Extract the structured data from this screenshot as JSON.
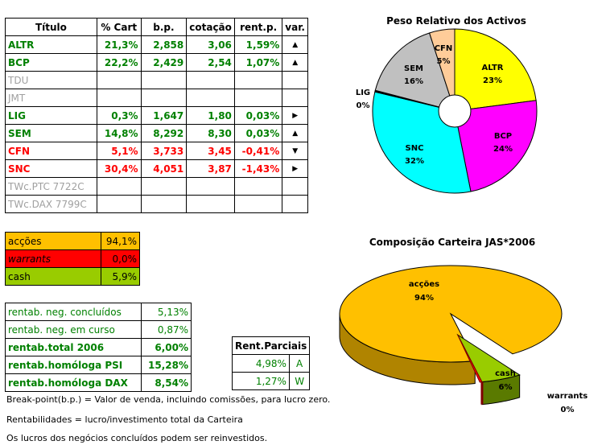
{
  "main_table": {
    "headers": [
      "Título",
      "% Cart",
      "b.p.",
      "cotação",
      "rent.p.",
      "var."
    ],
    "rows": [
      {
        "name": "ALTR",
        "pct": "21,3%",
        "bp": "2,858",
        "cot": "3,06",
        "rent": "1,59%",
        "var": "up",
        "color": "green"
      },
      {
        "name": "BCP",
        "pct": "22,2%",
        "bp": "2,429",
        "cot": "2,54",
        "rent": "1,07%",
        "var": "up",
        "color": "green"
      },
      {
        "name": "TDU",
        "pct": "",
        "bp": "",
        "cot": "",
        "rent": "",
        "var": "",
        "color": "gray"
      },
      {
        "name": "JMT",
        "pct": "",
        "bp": "",
        "cot": "",
        "rent": "",
        "var": "",
        "color": "gray"
      },
      {
        "name": "LIG",
        "pct": "0,3%",
        "bp": "1,647",
        "cot": "1,80",
        "rent": "0,03%",
        "var": "right",
        "color": "green"
      },
      {
        "name": "SEM",
        "pct": "14,8%",
        "bp": "8,292",
        "cot": "8,30",
        "rent": "0,03%",
        "var": "up",
        "color": "green"
      },
      {
        "name": "CFN",
        "pct": "5,1%",
        "bp": "3,733",
        "cot": "3,45",
        "rent": "-0,41%",
        "var": "down",
        "color": "red"
      },
      {
        "name": "SNC",
        "pct": "30,4%",
        "bp": "4,051",
        "cot": "3,87",
        "rent": "-1,43%",
        "var": "right",
        "color": "red"
      },
      {
        "name": "TWc.PTC 7722C",
        "pct": "",
        "bp": "",
        "cot": "",
        "rent": "",
        "var": "",
        "color": "gray"
      },
      {
        "name": "TWc.DAX 7799C",
        "pct": "",
        "bp": "",
        "cot": "",
        "rent": "",
        "var": "",
        "color": "gray"
      }
    ]
  },
  "summary": [
    {
      "label": "acções",
      "value": "94,1%",
      "bg": "#ffc000"
    },
    {
      "label": "warrants",
      "value": "0,0%",
      "bg": "#ff0000"
    },
    {
      "label": "cash",
      "value": "5,9%",
      "bg": "#99cc00"
    }
  ],
  "rentab": [
    {
      "label": "rentab. neg. concluídos",
      "value": "5,13%",
      "bold": false
    },
    {
      "label": "rentab. neg. em curso",
      "value": "0,87%",
      "bold": false
    },
    {
      "label": "rentab.total 2006",
      "value": "6,00%",
      "bold": true
    },
    {
      "label": "rentab.homóloga PSI",
      "value": "15,28%",
      "bold": true
    },
    {
      "label": "rentab.homóloga DAX",
      "value": "8,54%",
      "bold": true
    }
  ],
  "parciais": {
    "header": "Rent.Parciais",
    "rows": [
      {
        "value": "4,98%",
        "tag": "A"
      },
      {
        "value": "1,27%",
        "tag": "W"
      }
    ]
  },
  "notes": [
    "Break-point(b.p.) = Valor de venda, incluindo comissões, para lucro zero.",
    "Rentabilidades = lucro/investimento total da Carteira",
    "Os lucros dos negócios concluídos podem ser reinvestidos."
  ],
  "chart_data": [
    {
      "type": "pie",
      "title": "Peso Relativo dos Activos",
      "slices": [
        {
          "label": "ALTR",
          "pct": "23%",
          "value": 23,
          "color": "#ffff00"
        },
        {
          "label": "BCP",
          "pct": "24%",
          "value": 24,
          "color": "#ff00ff"
        },
        {
          "label": "SNC",
          "pct": "32%",
          "value": 32,
          "color": "#00ffff"
        },
        {
          "label": "LIG",
          "pct": "0%",
          "value": 0.3,
          "color": "#000000"
        },
        {
          "label": "SEM",
          "pct": "16%",
          "value": 16,
          "color": "#c0c0c0"
        },
        {
          "label": "CFN",
          "pct": "5%",
          "value": 5,
          "color": "#ffcc99"
        }
      ]
    },
    {
      "type": "pie",
      "title": "Composição Carteira JAS*2006",
      "slices": [
        {
          "label": "acções",
          "pct": "94%",
          "value": 94.1,
          "color": "#ffc000"
        },
        {
          "label": "cash",
          "pct": "6%",
          "value": 5.9,
          "color": "#99cc00"
        },
        {
          "label": "warrants",
          "pct": "0%",
          "value": 0.0,
          "color": "#ff0000"
        }
      ]
    }
  ]
}
